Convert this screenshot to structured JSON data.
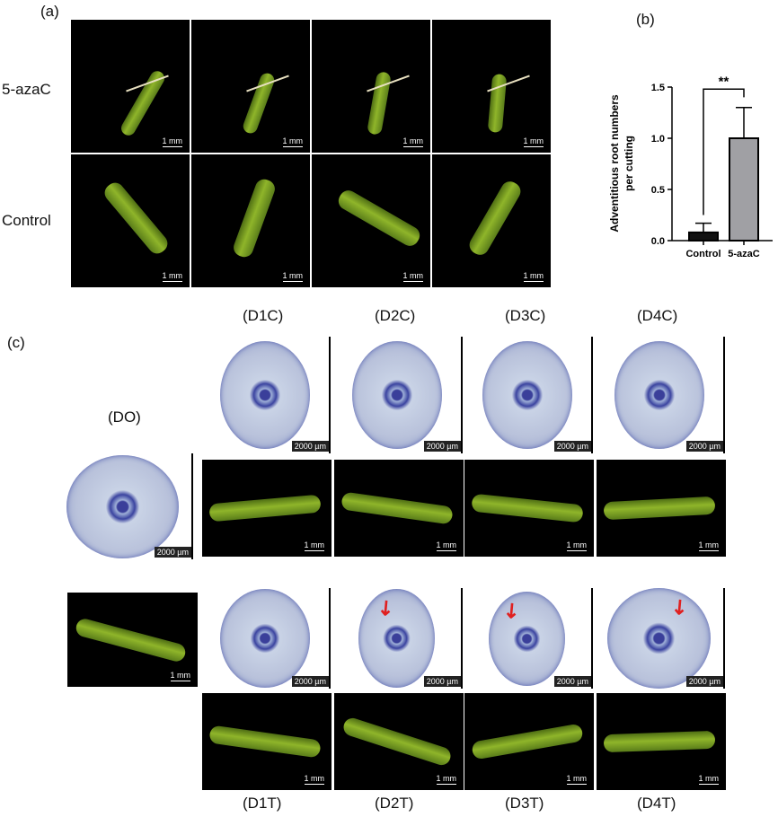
{
  "panel_a": {
    "label": "(a)",
    "rows": [
      {
        "label": "5-azaC"
      },
      {
        "label": "Control"
      }
    ],
    "scale_label": "1 mm"
  },
  "panel_b": {
    "label": "(b)"
  },
  "chart_data": {
    "type": "bar",
    "categories": [
      "Control",
      "5-azaC"
    ],
    "values": [
      0.08,
      1.0
    ],
    "error_upper": [
      0.17,
      1.3
    ],
    "colors": [
      "#111111",
      "#a0a0a4"
    ],
    "ylabel": "Adventitious root numbers per cutting",
    "ylim": [
      0,
      1.5
    ],
    "yticks": [
      "0.0",
      "0.5",
      "1.0",
      "1.5"
    ],
    "significance": "**",
    "grid": false
  },
  "panel_c": {
    "label": "(c)",
    "do_label": "(DO)",
    "top_labels": [
      "(D1C)",
      "(D2C)",
      "(D3C)",
      "(D4C)"
    ],
    "bottom_labels": [
      "(D1T)",
      "(D2T)",
      "(D3T)",
      "(D4T)"
    ],
    "section_scale": "2000 µm",
    "stem_scale": "1 mm",
    "arrow_color": "#e02020"
  }
}
